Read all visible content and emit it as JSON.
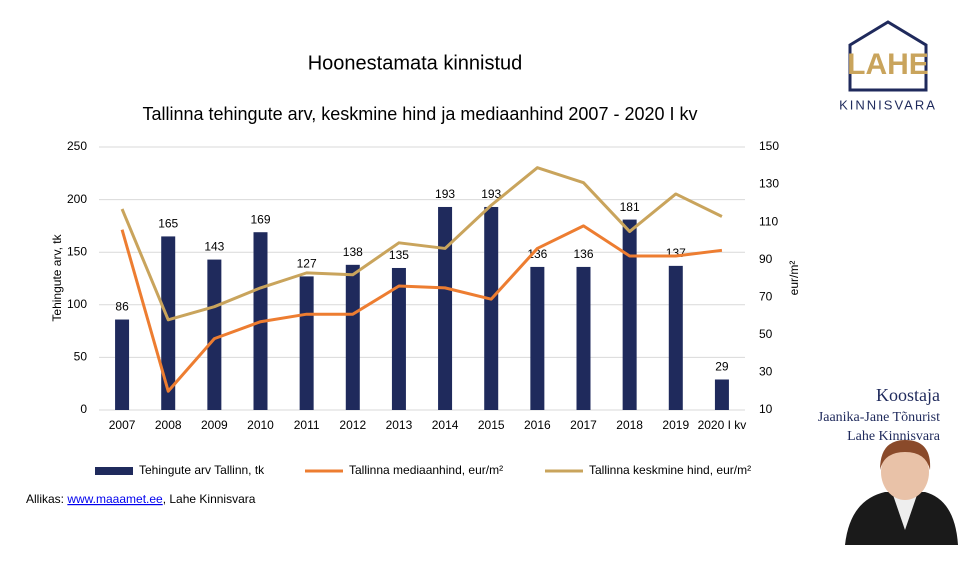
{
  "header": {
    "title": "Hoonestamata kinnistud"
  },
  "logo": {
    "mark": "LAHE",
    "name": "KINNISVARA"
  },
  "author": {
    "label": "Koostaja",
    "name": "Jaanika-Jane Tõnurist",
    "company": "Lahe Kinnisvara"
  },
  "source": {
    "prefix": "Allikas: ",
    "link": "www.maaamet.ee",
    "suffix": ", Lahe Kinnisvara"
  },
  "chart_data": {
    "type": "bar",
    "title": "Tallinna tehingute arv, keskmine hind ja mediaanhind 2007 - 2020 I kv",
    "ylabel": "Tehingute arv, tk",
    "y2label": "eur/m²",
    "categories": [
      "2007",
      "2008",
      "2009",
      "2010",
      "2011",
      "2012",
      "2013",
      "2014",
      "2015",
      "2016",
      "2017",
      "2018",
      "2019",
      "2020 I kv"
    ],
    "ylim": [
      0,
      250
    ],
    "yticks": [
      0,
      50,
      100,
      150,
      200,
      250
    ],
    "y2lim": [
      10,
      150
    ],
    "y2ticks": [
      10,
      30,
      50,
      70,
      90,
      110,
      130,
      150
    ],
    "grid": true,
    "legend": "bottom",
    "series": [
      {
        "name": "Tehingute arv Tallinn, tk",
        "type": "bar",
        "color": "#1f2a5c",
        "values": [
          86,
          165,
          143,
          169,
          127,
          138,
          135,
          193,
          193,
          136,
          136,
          181,
          137,
          29
        ]
      },
      {
        "name": "Tallinna mediaanhind, eur/m²",
        "type": "line",
        "axis": "y2",
        "color": "#ed7d31",
        "values": [
          106,
          20,
          48,
          57,
          61,
          61,
          76,
          75,
          69,
          96,
          108,
          92,
          92,
          95
        ]
      },
      {
        "name": "Tallinna keskmine hind, eur/m²",
        "type": "line",
        "axis": "y2",
        "color": "#c9a45c",
        "values": [
          117,
          58,
          65,
          75,
          83,
          82,
          99,
          96,
          119,
          139,
          131,
          105,
          125,
          113
        ]
      }
    ]
  }
}
